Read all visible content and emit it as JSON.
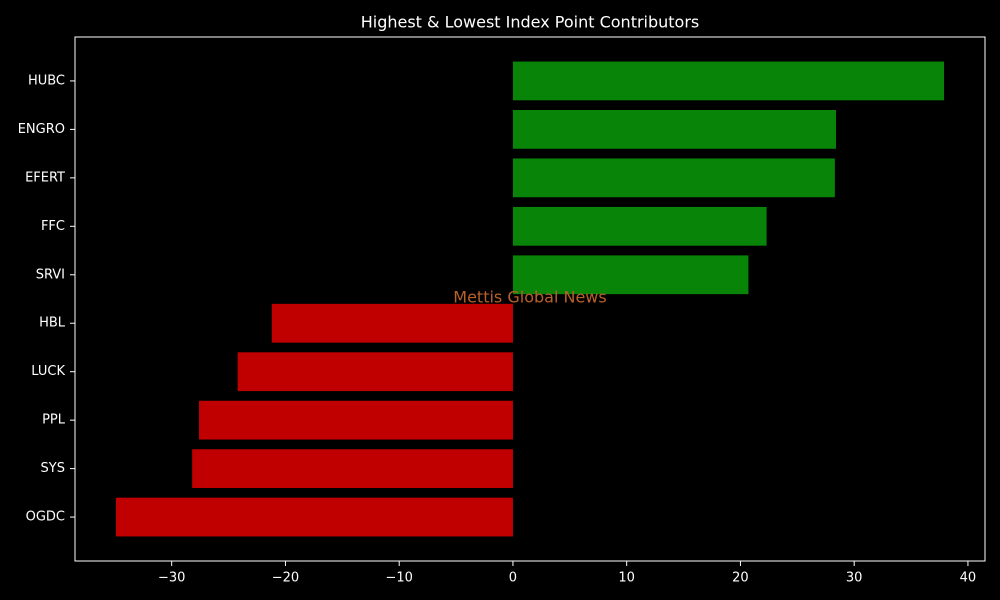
{
  "chart_data": {
    "type": "hbar",
    "title": "Highest & Lowest Index Point Contributors",
    "watermark": "Mettis Global News",
    "categories": [
      "HUBC",
      "ENGRO",
      "EFERT",
      "FFC",
      "SRVI",
      "HBL",
      "LUCK",
      "PPL",
      "SYS",
      "OGDC"
    ],
    "values": [
      37.9,
      28.4,
      28.3,
      22.3,
      20.7,
      -21.2,
      -24.2,
      -27.6,
      -28.2,
      -34.9
    ],
    "colors": [
      "#088408",
      "#088408",
      "#088408",
      "#088408",
      "#088408",
      "#c00000",
      "#c00000",
      "#c00000",
      "#c00000",
      "#c00000"
    ],
    "xlim": [
      -38.5,
      41.5
    ],
    "xticks": [
      {
        "value": -30,
        "label": "−30"
      },
      {
        "value": -20,
        "label": "−20"
      },
      {
        "value": -10,
        "label": "−10"
      },
      0,
      10,
      20,
      30,
      40
    ]
  }
}
